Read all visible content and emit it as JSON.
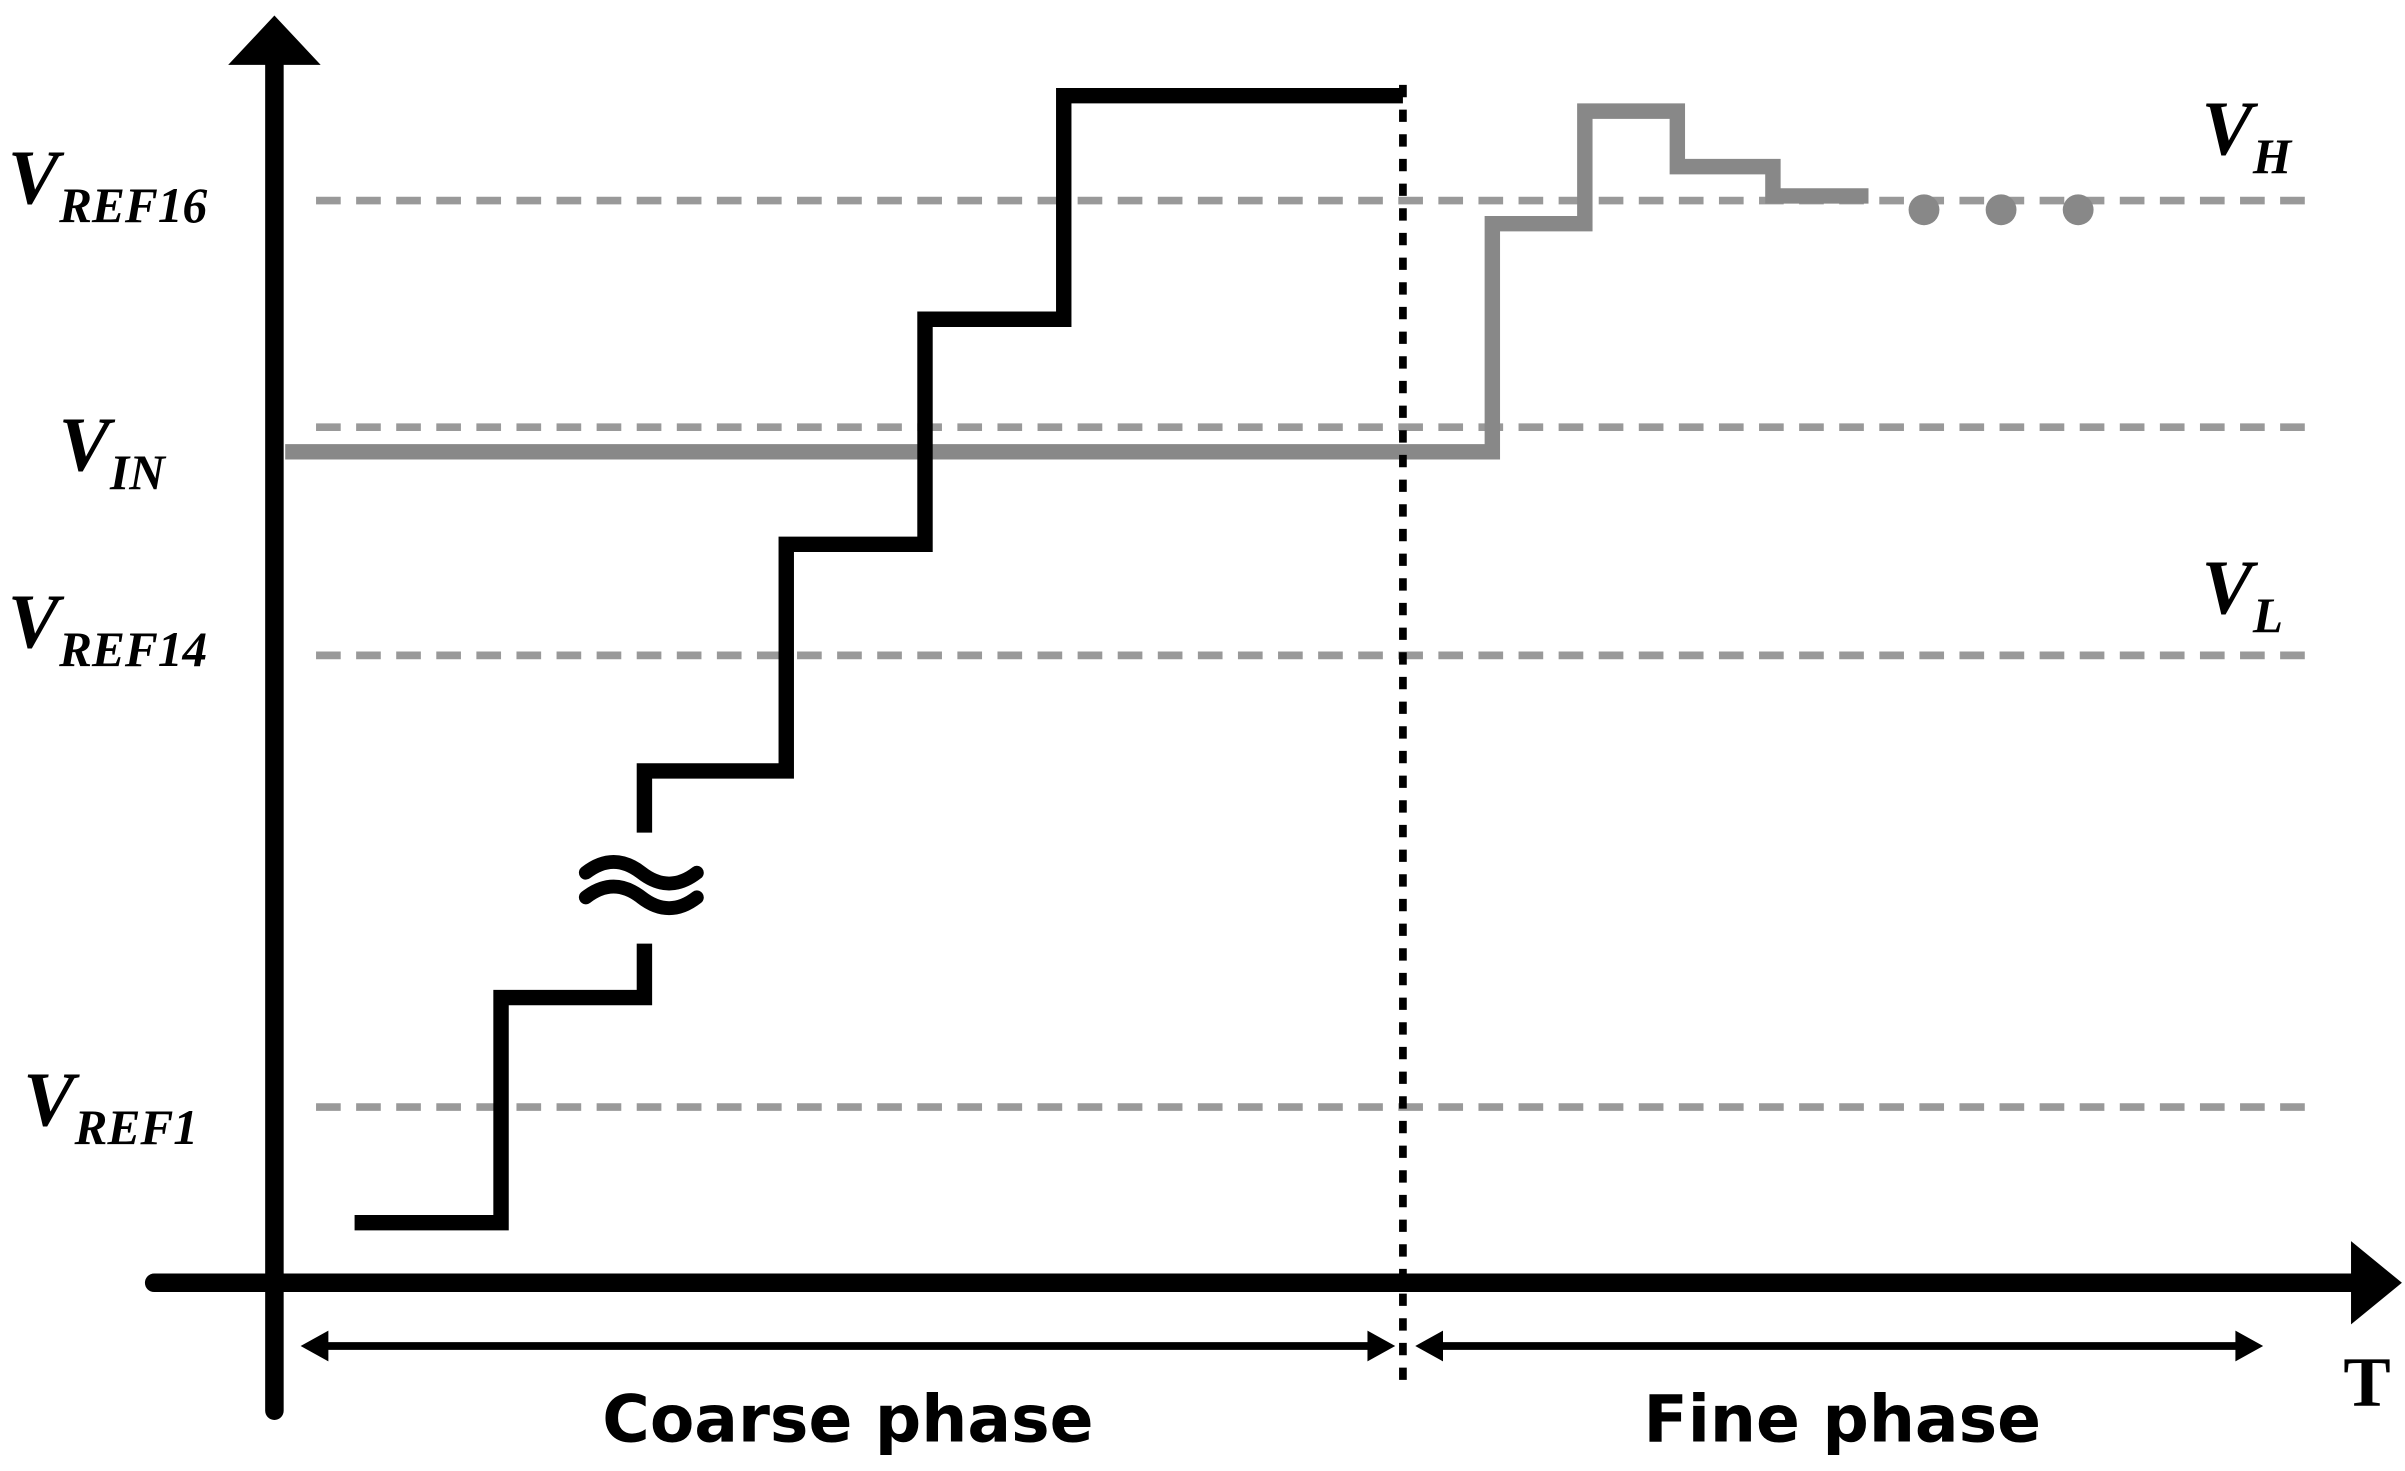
{
  "labels": {
    "vref16": {
      "main": "V",
      "sub": "REF16"
    },
    "vin": {
      "main": "V",
      "sub": "IN"
    },
    "vref14": {
      "main": "V",
      "sub": "REF14"
    },
    "vref1": {
      "main": "V",
      "sub": "REF1"
    },
    "vh": {
      "main": "V",
      "sub": "H"
    },
    "vl": {
      "main": "V",
      "sub": "L"
    }
  },
  "axis": {
    "x_label": "T"
  },
  "phases": {
    "coarse": "Coarse phase",
    "fine": "Fine phase"
  }
}
